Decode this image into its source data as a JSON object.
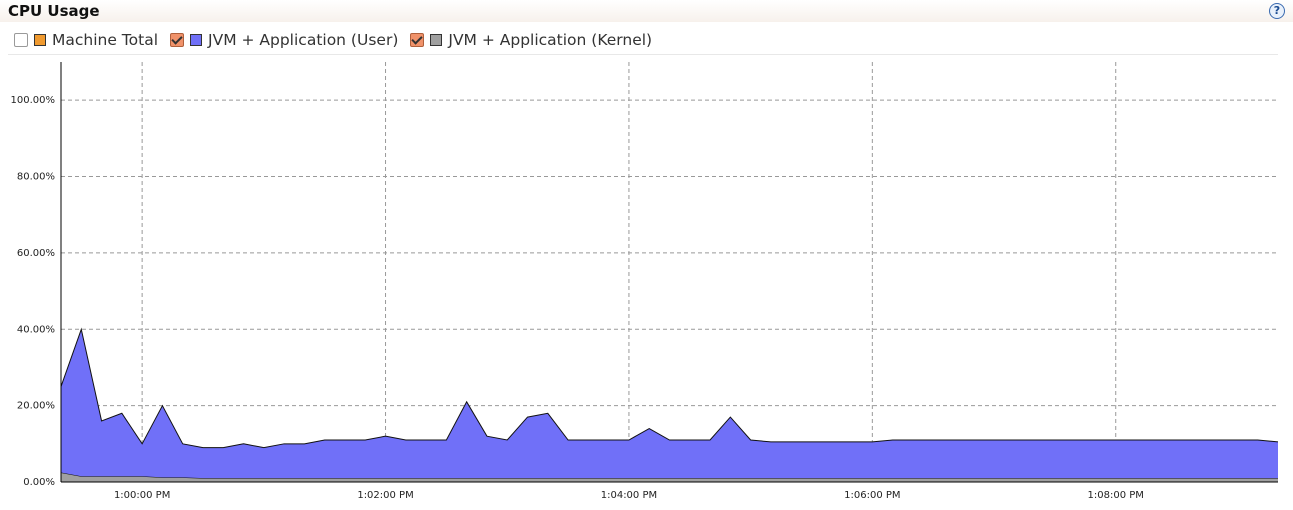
{
  "chart_data": {
    "type": "stacked_area",
    "title": "CPU Usage",
    "help": "?",
    "series": [
      {
        "name": "Machine Total",
        "color": "#f09a30",
        "checked": false
      },
      {
        "name": "JVM + Application (User)",
        "color": "#7070f8",
        "checked": true,
        "values": [
          22.5,
          38.5,
          14.5,
          16.5,
          8.5,
          18.8,
          8.8,
          8,
          8,
          9,
          8,
          9,
          9,
          10,
          10,
          10,
          11,
          10,
          10,
          10,
          20,
          11,
          10,
          16,
          17,
          10,
          10,
          10,
          10,
          13,
          10,
          10,
          10,
          16,
          10,
          9.5,
          9.5,
          9.5,
          9.5,
          9.5,
          9.5,
          10,
          10,
          10,
          10,
          10,
          10,
          10,
          10,
          10,
          10,
          10,
          10,
          10,
          10,
          10,
          10,
          10,
          10,
          10,
          9.5
        ]
      },
      {
        "name": "JVM + Application (Kernel)",
        "color": "#a0a0a0",
        "checked": true,
        "values": [
          2.5,
          1.5,
          1.5,
          1.5,
          1.5,
          1.2,
          1.2,
          1,
          1,
          1,
          1,
          1,
          1,
          1,
          1,
          1,
          1,
          1,
          1,
          1,
          1,
          1,
          1,
          1,
          1,
          1,
          1,
          1,
          1,
          1,
          1,
          1,
          1,
          1,
          1,
          1,
          1,
          1,
          1,
          1,
          1,
          1,
          1,
          1,
          1,
          1,
          1,
          1,
          1,
          1,
          1,
          1,
          1,
          1,
          1,
          1,
          1,
          1,
          1,
          1,
          1
        ]
      }
    ],
    "x": [
      "12:59:20 PM",
      "12:59:30 PM",
      "12:59:40 PM",
      "12:59:50 PM",
      "1:00:00 PM",
      "1:00:10 PM",
      "1:00:20 PM",
      "1:00:30 PM",
      "1:00:40 PM",
      "1:00:50 PM",
      "1:01:00 PM",
      "1:01:10 PM",
      "1:01:20 PM",
      "1:01:30 PM",
      "1:01:40 PM",
      "1:01:50 PM",
      "1:02:00 PM",
      "1:02:10 PM",
      "1:02:20 PM",
      "1:02:30 PM",
      "1:02:40 PM",
      "1:02:50 PM",
      "1:03:00 PM",
      "1:03:10 PM",
      "1:03:20 PM",
      "1:03:30 PM",
      "1:03:40 PM",
      "1:03:50 PM",
      "1:04:00 PM",
      "1:04:10 PM",
      "1:04:20 PM",
      "1:04:30 PM",
      "1:04:40 PM",
      "1:04:50 PM",
      "1:05:00 PM",
      "1:05:10 PM",
      "1:05:20 PM",
      "1:05:30 PM",
      "1:05:40 PM",
      "1:05:50 PM",
      "1:06:00 PM",
      "1:06:10 PM",
      "1:06:20 PM",
      "1:06:30 PM",
      "1:06:40 PM",
      "1:06:50 PM",
      "1:07:00 PM",
      "1:07:10 PM",
      "1:07:20 PM",
      "1:07:30 PM",
      "1:07:40 PM",
      "1:07:50 PM",
      "1:08:00 PM",
      "1:08:10 PM",
      "1:08:20 PM",
      "1:08:30 PM",
      "1:08:40 PM",
      "1:08:50 PM",
      "1:09:00 PM",
      "1:09:10 PM",
      "1:09:20 PM"
    ],
    "xlim": [
      "12:59:20 PM",
      "1:09:20 PM"
    ],
    "xticks": [
      "1:00:00 PM",
      "1:02:00 PM",
      "1:04:00 PM",
      "1:06:00 PM",
      "1:08:00 PM"
    ],
    "ylim": [
      0,
      110
    ],
    "yticks": [
      {
        "value": 0,
        "label": "0.00%"
      },
      {
        "value": 20,
        "label": "20.00%"
      },
      {
        "value": 40,
        "label": "40.00%"
      },
      {
        "value": 60,
        "label": "60.00%"
      },
      {
        "value": 80,
        "label": "80.00%"
      },
      {
        "value": 100,
        "label": "100.00%"
      }
    ],
    "grid": true
  }
}
